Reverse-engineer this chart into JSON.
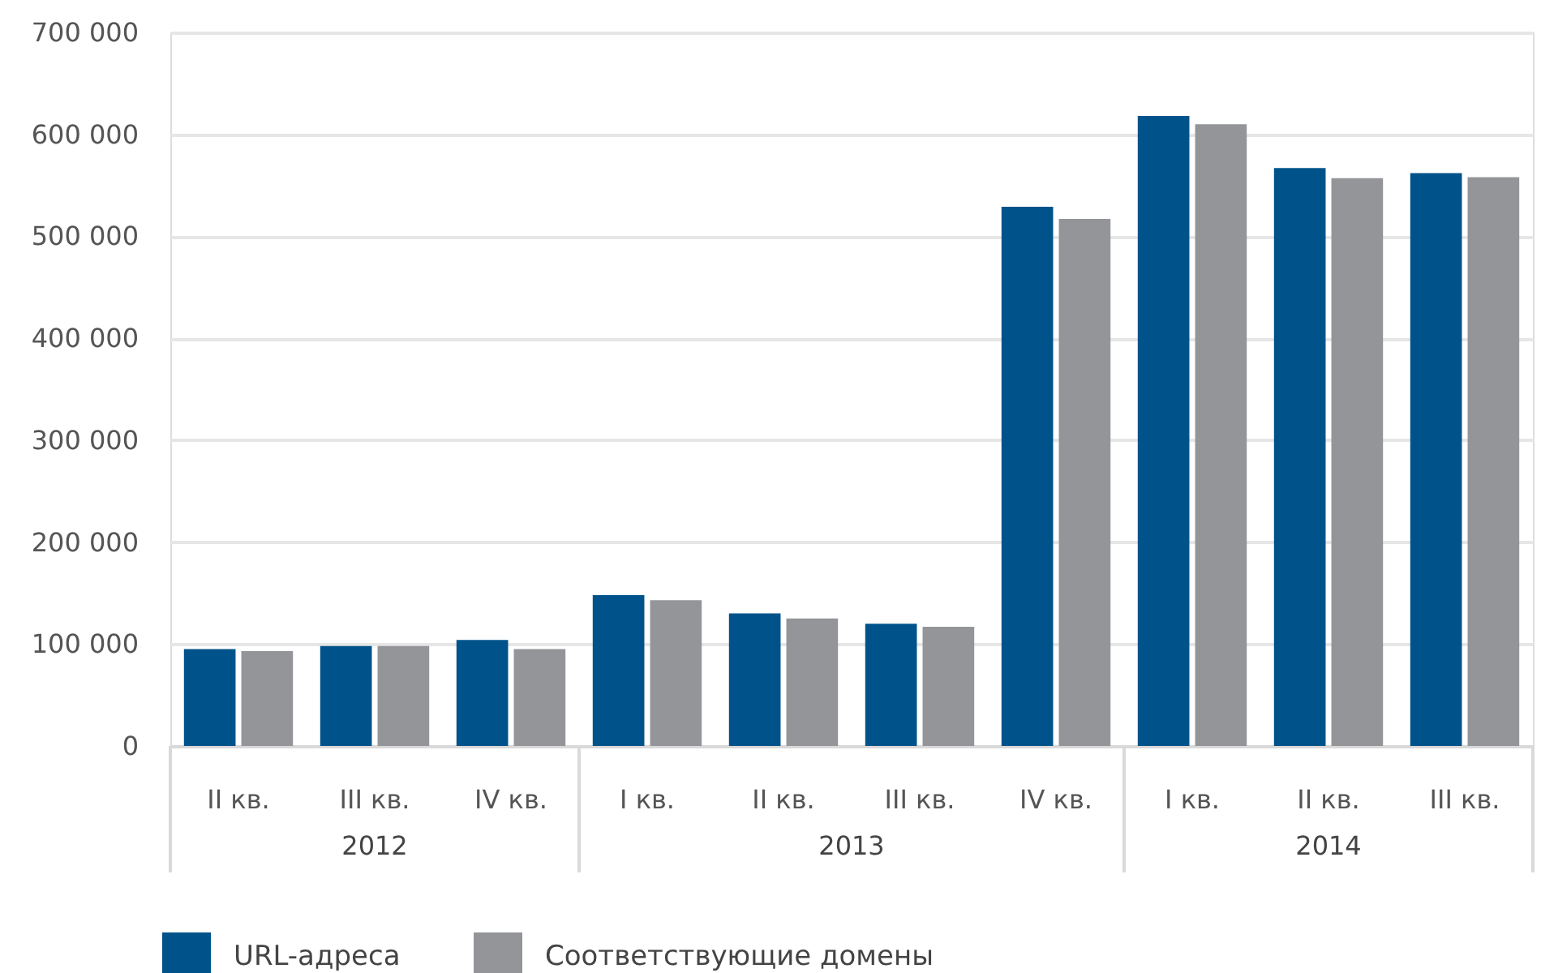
{
  "chart_data": {
    "type": "bar",
    "categories": [
      "II кв.",
      "III кв.",
      "IV кв.",
      "I кв.",
      "II кв.",
      "III кв.",
      "IV кв.",
      "I кв.",
      "II кв.",
      "III кв."
    ],
    "annotations": [
      "2012",
      "2013",
      "2014"
    ],
    "series": [
      {
        "name": "URL-адреса",
        "color": "#00538a",
        "values": [
          95000,
          98000,
          104000,
          148000,
          130000,
          120000,
          529000,
          618000,
          567000,
          562000
        ]
      },
      {
        "name": "Соответствующие домены",
        "color": "#939598",
        "values": [
          93000,
          98000,
          95000,
          143000,
          125000,
          117000,
          517000,
          610000,
          557000,
          558000
        ]
      }
    ],
    "ylim": [
      0,
      700000
    ],
    "yticks": [
      {
        "value": 0,
        "label": "0"
      },
      {
        "value": 100000,
        "label": "100 000"
      },
      {
        "value": 200000,
        "label": "200 000"
      },
      {
        "value": 300000,
        "label": "300 000"
      },
      {
        "value": 400000,
        "label": "400 000"
      },
      {
        "value": 500000,
        "label": "500 000"
      },
      {
        "value": 600000,
        "label": "600 000"
      },
      {
        "value": 700000,
        "label": "700 000"
      }
    ],
    "grid": "y",
    "legend": "bottom left"
  }
}
